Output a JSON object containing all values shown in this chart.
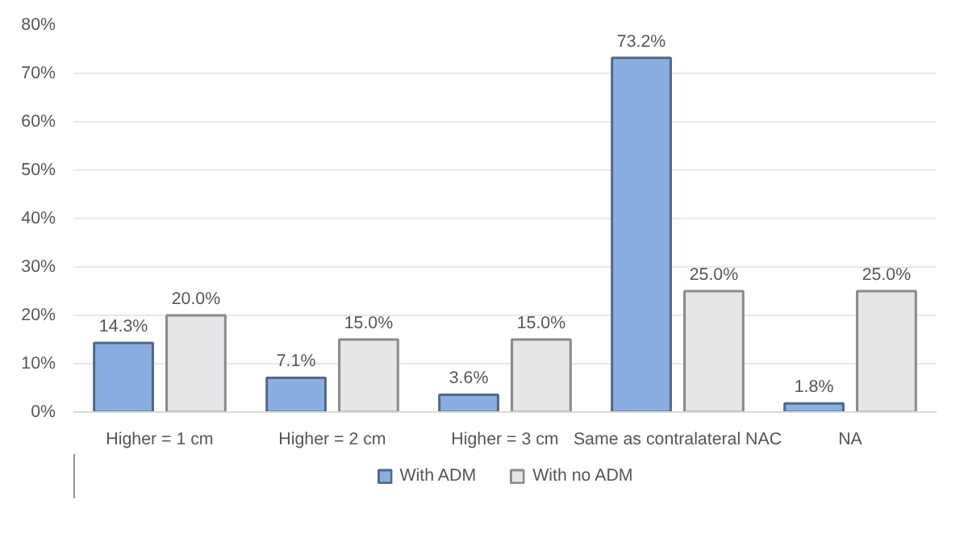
{
  "chart_data": {
    "type": "bar",
    "categories": [
      "Higher = 1 cm",
      "Higher = 2 cm",
      "Higher = 3 cm",
      "Same as contralateral NAC",
      "NA"
    ],
    "series": [
      {
        "name": "With ADM",
        "color": "#8aaee0",
        "values": [
          14.3,
          7.1,
          3.6,
          73.2,
          1.8
        ],
        "value_labels": [
          "14.3%",
          "7.1%",
          "3.6%",
          "73.2%",
          "1.8%"
        ]
      },
      {
        "name": "With no ADM",
        "color": "#e4e6e8",
        "values": [
          20.0,
          15.0,
          15.0,
          25.0,
          25.0
        ],
        "value_labels": [
          "20.0%",
          "15.0%",
          "15.0%",
          "25.0%",
          "25.0%"
        ]
      }
    ],
    "ylim": [
      0,
      80
    ],
    "yticks": [
      {
        "value": 0,
        "label": "0%"
      },
      {
        "value": 10,
        "label": "10%"
      },
      {
        "value": 20,
        "label": "20%"
      },
      {
        "value": 30,
        "label": "30%"
      },
      {
        "value": 40,
        "label": "40%"
      },
      {
        "value": 50,
        "label": "50%"
      },
      {
        "value": 60,
        "label": "60%"
      },
      {
        "value": 70,
        "label": "70%"
      },
      {
        "value": 80,
        "label": "80%"
      }
    ],
    "grid": "y",
    "legend": "bottom"
  }
}
